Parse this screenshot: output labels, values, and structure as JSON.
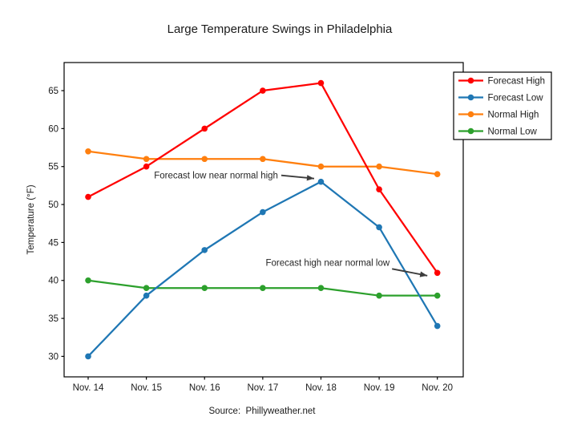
{
  "title": "Large Temperature Swings in Philadelphia",
  "source": "Source:  Phillyweather.net",
  "chart_data": {
    "type": "line",
    "x": [
      "Nov. 14",
      "Nov. 15",
      "Nov. 16",
      "Nov. 17",
      "Nov. 18",
      "Nov. 19",
      "Nov. 20"
    ],
    "series": [
      {
        "name": "Forecast High",
        "color": "#ff0000",
        "values": [
          51,
          55,
          60,
          65,
          66,
          52,
          41
        ]
      },
      {
        "name": "Forecast Low",
        "color": "#1f77b4",
        "values": [
          30,
          38,
          44,
          49,
          53,
          47,
          34
        ]
      },
      {
        "name": "Normal High",
        "color": "#ff7f0e",
        "values": [
          57,
          56,
          56,
          56,
          55,
          55,
          54
        ]
      },
      {
        "name": "Normal Low",
        "color": "#2ca02c",
        "values": [
          40,
          39,
          39,
          39,
          39,
          38,
          38
        ]
      }
    ],
    "xlabel": "",
    "ylabel": "Temperature (°F)",
    "yticks": [
      30,
      35,
      40,
      45,
      50,
      55,
      60,
      65
    ],
    "ylim": [
      27.3,
      68.7
    ],
    "grid": false,
    "legend_position": "top-right",
    "axis_color": "#000000",
    "annotation_color": "#3d3d3d",
    "annotations": [
      {
        "text": "Forecast low near normal high",
        "series": "Forecast Low",
        "x": "Nov. 18",
        "value": 53
      },
      {
        "text": "Forecast high near normal low",
        "series": "Forecast High",
        "x": "Nov. 20",
        "value": 41
      }
    ]
  }
}
